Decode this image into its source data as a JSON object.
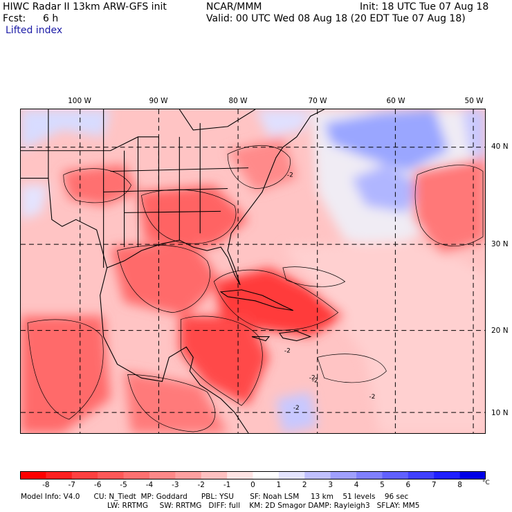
{
  "header": {
    "title": "HIWC Radar II 13km ARW-GFS init",
    "org": "NCAR/MMM",
    "init": "Init: 18 UTC Tue 07 Aug 18",
    "fcst_label": "Fcst:",
    "fcst_value": "6 h",
    "valid": "Valid: 00 UTC Wed 08 Aug 18 (20 EDT Tue 07 Aug 18)",
    "field": "Lifted index"
  },
  "map": {
    "lon_labels": [
      "100 W",
      "90 W",
      "80 W",
      "70 W",
      "60 W",
      "50 W"
    ],
    "lat_labels": [
      "40 N",
      "30 N",
      "20 N",
      "10 N"
    ],
    "contour_labels": [
      "-2",
      "-2",
      "-2",
      "-2",
      "-2",
      "-2"
    ]
  },
  "colorbar": {
    "ticks": [
      "-8",
      "-7",
      "-6",
      "-5",
      "-4",
      "-3",
      "-2",
      "-1",
      "0",
      "1",
      "2",
      "3",
      "4",
      "5",
      "6",
      "7",
      "8"
    ],
    "unit": "°C",
    "colors": [
      "#ff0000",
      "#ff2020",
      "#ff4040",
      "#ff5858",
      "#ff7070",
      "#ff8888",
      "#ffa0a0",
      "#ffc0c0",
      "#ffe4e4",
      "#ffffff",
      "#e4e4ff",
      "#c0c0ff",
      "#a0a0ff",
      "#8080ff",
      "#6060ff",
      "#4040ff",
      "#2020ff",
      "#0000e6"
    ]
  },
  "footer": {
    "line1": "Model Info: V4.0      CU: N_Tiedt  MP: Goddard      PBL: YSU       SF: Noah LSM     13 km    51 levels    96 sec",
    "line2": "LW: RRTMG     SW: RRTMG   DIFF: full    KM: 2D Smagor DAMP: Rayleigh3   SFLAY: MM5"
  }
}
